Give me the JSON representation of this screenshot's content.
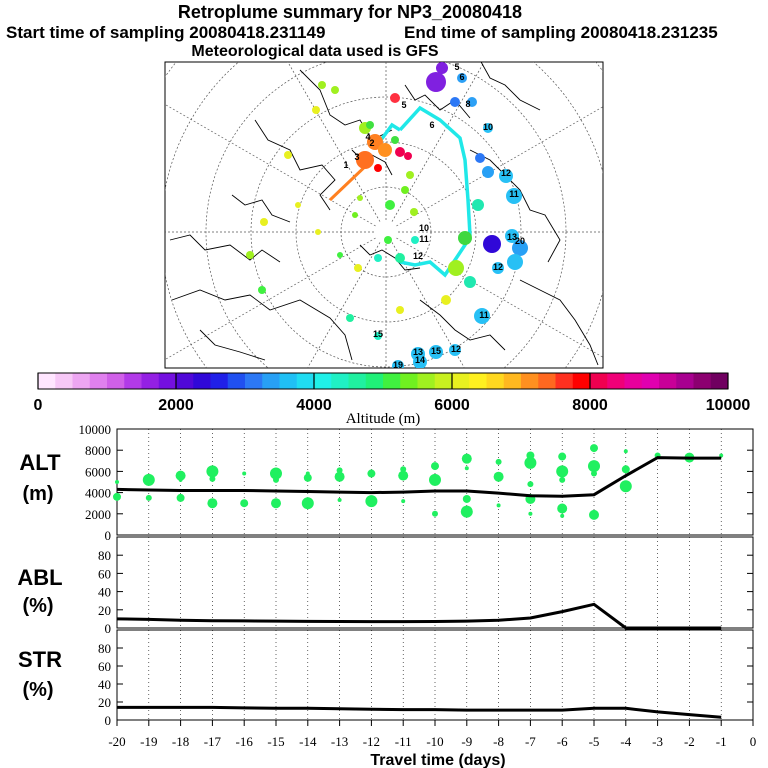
{
  "header": {
    "title": "Retroplume summary for NP3_20080418",
    "start_label": "Start time of sampling 20080418.231149",
    "end_label": "End time of sampling 20080418.231235",
    "met_label": "Meteorological data used is GFS"
  },
  "colorbar": {
    "ticks": [
      "0",
      "2000",
      "4000",
      "6000",
      "8000",
      "10000"
    ],
    "label": "Altitude (m)",
    "colors": [
      "#ffe6ff",
      "#f7c8f7",
      "#eda6f2",
      "#e080ee",
      "#d060e8",
      "#b23ae8",
      "#9420e4",
      "#7410e0",
      "#5008d8",
      "#3008d8",
      "#2020e8",
      "#2050f0",
      "#2c78f5",
      "#28a0f5",
      "#20c0f5",
      "#20dcf2",
      "#20f0e8",
      "#20f0c4",
      "#20f0a0",
      "#20f078",
      "#40f040",
      "#70f020",
      "#a0f020",
      "#c8f020",
      "#e8f020",
      "#fff020",
      "#ffd820",
      "#ffb820",
      "#ff9020",
      "#ff6820",
      "#ff3020",
      "#ff0000",
      "#f00050",
      "#f00078",
      "#e8009c",
      "#e000b0",
      "#c80098",
      "#a80090",
      "#8c0070",
      "#700060"
    ]
  },
  "map": {
    "trajectory_numbers": [
      "1",
      "2",
      "3",
      "4",
      "5",
      "6",
      "8",
      "10",
      "11",
      "12",
      "13",
      "14",
      "15",
      "19",
      "20"
    ]
  },
  "xaxis": {
    "label": "Travel time (days)",
    "ticks": [
      "-20",
      "-19",
      "-18",
      "-17",
      "-16",
      "-15",
      "-14",
      "-13",
      "-12",
      "-11",
      "-10",
      "-9",
      "-8",
      "-7",
      "-6",
      "-5",
      "-4",
      "-3",
      "-2",
      "-1",
      "0"
    ]
  },
  "chart_data": [
    {
      "type": "line",
      "name": "ALT",
      "ylabel": "ALT\n(m)",
      "ylabel_lines": [
        "ALT",
        "(m)"
      ],
      "yticks": [
        "0",
        "2000",
        "4000",
        "6000",
        "8000",
        "10000"
      ],
      "ylim": [
        0,
        10000
      ],
      "xlim": [
        -20,
        0
      ],
      "x": [
        -20,
        -19,
        -18,
        -17,
        -16,
        -15,
        -14,
        -13,
        -12,
        -11,
        -10,
        -9,
        -8,
        -7,
        -6,
        -5,
        -4,
        -3,
        -2,
        -1
      ],
      "values": [
        4300,
        4250,
        4200,
        4200,
        4200,
        4150,
        4100,
        4050,
        4000,
        4050,
        4150,
        4150,
        3950,
        3700,
        3650,
        3800,
        5600,
        7300,
        7250,
        7250
      ],
      "cluster_points": [
        [
          -20,
          5000
        ],
        [
          -20,
          3600
        ],
        [
          -19,
          5200
        ],
        [
          -19,
          3500
        ],
        [
          -18,
          5600
        ],
        [
          -18,
          5200
        ],
        [
          -18,
          3500
        ],
        [
          -17,
          6000
        ],
        [
          -17,
          5300
        ],
        [
          -17,
          3000
        ],
        [
          -16,
          5800
        ],
        [
          -16,
          3000
        ],
        [
          -15,
          5800
        ],
        [
          -15,
          5200
        ],
        [
          -15,
          3000
        ],
        [
          -14,
          5800
        ],
        [
          -14,
          5400
        ],
        [
          -14,
          3000
        ],
        [
          -13,
          6100
        ],
        [
          -13,
          5500
        ],
        [
          -13,
          3300
        ],
        [
          -12,
          5800
        ],
        [
          -12,
          3200
        ],
        [
          -11,
          6200
        ],
        [
          -11,
          5600
        ],
        [
          -11,
          3200
        ],
        [
          -10,
          6500
        ],
        [
          -10,
          5200
        ],
        [
          -10,
          2000
        ],
        [
          -9,
          7200
        ],
        [
          -9,
          6300
        ],
        [
          -9,
          3400
        ],
        [
          -9,
          2200
        ],
        [
          -8,
          6900
        ],
        [
          -8,
          5500
        ],
        [
          -8,
          2800
        ],
        [
          -7,
          7500
        ],
        [
          -7,
          6800
        ],
        [
          -7,
          4800
        ],
        [
          -7,
          3400
        ],
        [
          -7,
          2000
        ],
        [
          -6,
          7400
        ],
        [
          -6,
          6000
        ],
        [
          -6,
          5200
        ],
        [
          -6,
          2500
        ],
        [
          -6,
          1800
        ],
        [
          -5,
          8200
        ],
        [
          -5,
          6500
        ],
        [
          -5,
          5800
        ],
        [
          -5,
          1900
        ],
        [
          -4,
          7900
        ],
        [
          -4,
          6200
        ],
        [
          -4,
          4600
        ],
        [
          -3,
          7500
        ],
        [
          -2,
          7300
        ],
        [
          -1,
          7500
        ]
      ]
    },
    {
      "type": "line",
      "name": "ABL",
      "ylabel": "ABL\n(%)",
      "ylabel_lines": [
        "ABL",
        "(%)"
      ],
      "yticks": [
        "0",
        "20",
        "40",
        "60",
        "80"
      ],
      "ylim": [
        0,
        100
      ],
      "xlim": [
        -20,
        0
      ],
      "x": [
        -20,
        -19,
        -18,
        -17,
        -16,
        -15,
        -14,
        -13,
        -12,
        -11,
        -10,
        -9,
        -8,
        -7,
        -6,
        -5,
        -4,
        -3,
        -2,
        -1
      ],
      "values": [
        10,
        9.5,
        8.5,
        8,
        7.8,
        7.5,
        7.3,
        7.2,
        7,
        7,
        7.2,
        7.5,
        8.5,
        11,
        18,
        26,
        0,
        0,
        0,
        0
      ]
    },
    {
      "type": "line",
      "name": "STR",
      "ylabel": "STR\n(%)",
      "ylabel_lines": [
        "STR",
        "(%)"
      ],
      "yticks": [
        "0",
        "20",
        "40",
        "60",
        "80"
      ],
      "ylim": [
        0,
        100
      ],
      "xlim": [
        -20,
        0
      ],
      "x": [
        -20,
        -19,
        -18,
        -17,
        -16,
        -15,
        -14,
        -13,
        -12,
        -11,
        -10,
        -9,
        -8,
        -7,
        -6,
        -5,
        -4,
        -3,
        -2,
        -1
      ],
      "values": [
        14,
        14,
        14,
        14,
        13.5,
        13,
        13,
        12.5,
        12,
        11.5,
        11.5,
        11,
        11,
        11,
        11,
        13,
        13,
        9,
        6,
        3
      ]
    }
  ]
}
